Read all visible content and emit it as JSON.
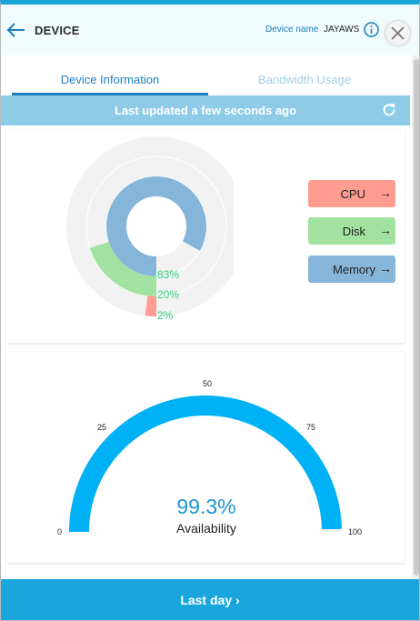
{
  "header": {
    "title": "DEVICE",
    "device_name_label": "Device name",
    "device_name_value": "JAYAWS"
  },
  "tabs": [
    {
      "label": "Device Information",
      "active": true
    },
    {
      "label": "Bandwidth Usage",
      "active": false
    }
  ],
  "status": {
    "last_updated": "Last updated a few seconds ago"
  },
  "resources": {
    "legend": [
      {
        "label": "CPU",
        "arrow": "→",
        "color": "#ff9c92"
      },
      {
        "label": "Disk",
        "arrow": "→",
        "color": "#a2e2a0"
      },
      {
        "label": "Memory",
        "arrow": "→",
        "color": "#85b6d9"
      }
    ],
    "rings": [
      {
        "name": "Memory",
        "value": 83,
        "label": "83%",
        "color": "#85b6d9"
      },
      {
        "name": "Disk",
        "value": 20,
        "label": "20%",
        "color": "#a2e2a0"
      },
      {
        "name": "CPU",
        "value": 2,
        "label": "2%",
        "color": "#ff9c92"
      }
    ]
  },
  "availability": {
    "value": 99.3,
    "value_label": "99.3%",
    "label": "Availability",
    "ticks": [
      "0",
      "25",
      "50",
      "75",
      "100"
    ],
    "color": "#00b1f5"
  },
  "footer": {
    "label": "Last day",
    "chevron": "›"
  }
}
